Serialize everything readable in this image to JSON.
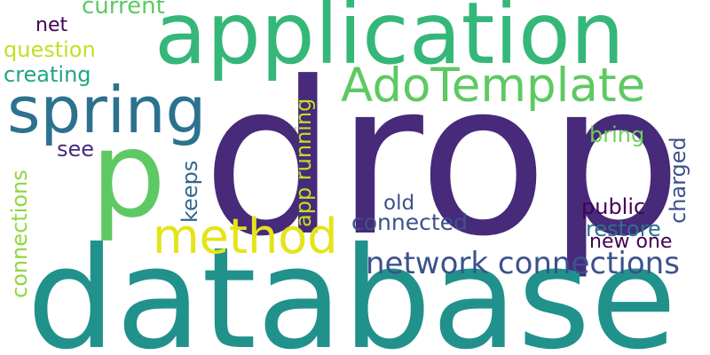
{
  "words": {
    "drop": "drop",
    "database": "database",
    "application": "application",
    "p": "p",
    "spring": "spring",
    "method": "method",
    "adotemplate": "AdoTemplate",
    "network_connections": "network connections",
    "connections": "connections",
    "current": "current",
    "net": "net",
    "question": "question",
    "creating": "creating",
    "see": "see",
    "keeps": "keeps",
    "app_running": "app running",
    "old": "old",
    "connected": "connected",
    "public": "public",
    "restore": "restore",
    "charged": "charged",
    "bring": "bring",
    "new_one": "new one"
  },
  "colors": {
    "drop": "#472a7a",
    "database": "#21918c",
    "application": "#35b779",
    "p": "#5ec962",
    "spring": "#2c728e",
    "method": "#e4e419",
    "adotemplate": "#5ec962",
    "network_connections": "#3b528b",
    "connections": "#90d743",
    "current": "#5ec962",
    "net": "#440154",
    "question": "#c2df23",
    "creating": "#21a585",
    "see": "#472a7a",
    "keeps": "#31688e",
    "app_running": "#c2df23",
    "old": "#3b528b",
    "connected": "#3b528b",
    "public": "#440154",
    "restore": "#2c728e",
    "charged": "#3b528b",
    "bring": "#6ece58",
    "new_one": "#440154"
  }
}
